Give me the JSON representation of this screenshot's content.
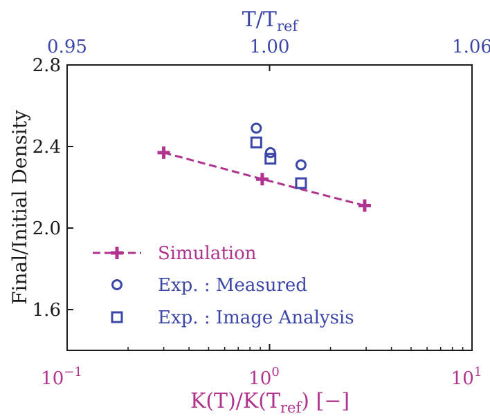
{
  "chart_data": {
    "type": "scatter",
    "x_axis": {
      "label_main": "K(T)/K(T",
      "label_sub": "ref",
      "label_tail": ") [−]",
      "scale": "log",
      "range": [
        0.1,
        10
      ],
      "ticks": [
        {
          "value": 0.1,
          "base": "10",
          "exp": "−1"
        },
        {
          "value": 1,
          "base": "10",
          "exp": "0"
        },
        {
          "value": 10,
          "base": "10",
          "exp": "1"
        }
      ],
      "color": "#b0338f"
    },
    "top_axis": {
      "label_main": "T/T",
      "label_sub": "ref",
      "ticks": [
        {
          "pos": 0.1,
          "text": "0.95"
        },
        {
          "pos": 1,
          "text": "1.00"
        },
        {
          "pos": 10,
          "text": "1.06"
        }
      ],
      "color": "#3b46a8"
    },
    "y_axis": {
      "label": "Final/Initial Density",
      "range": [
        1.4,
        2.8
      ],
      "ticks": [
        {
          "value": 1.6,
          "text": "1.6"
        },
        {
          "value": 2.0,
          "text": "2.0"
        },
        {
          "value": 2.4,
          "text": "2.4"
        },
        {
          "value": 2.8,
          "text": "2.8"
        }
      ]
    },
    "series": [
      {
        "name": "Simulation",
        "marker": "plus",
        "line": "dashed",
        "color": "#b0338f",
        "points": [
          {
            "x": 0.3,
            "y": 2.37
          },
          {
            "x": 0.92,
            "y": 2.24
          },
          {
            "x": 2.95,
            "y": 2.11
          }
        ]
      },
      {
        "name": "Exp. : Measured",
        "marker": "circle",
        "line": "none",
        "color": "#3b46a8",
        "points": [
          {
            "x": 0.86,
            "y": 2.49
          },
          {
            "x": 1.01,
            "y": 2.37
          },
          {
            "x": 1.43,
            "y": 2.31
          }
        ]
      },
      {
        "name": "Exp. : Image Analysis",
        "marker": "square",
        "line": "none",
        "color": "#3b46a8",
        "points": [
          {
            "x": 0.86,
            "y": 2.42
          },
          {
            "x": 1.01,
            "y": 2.34
          },
          {
            "x": 1.43,
            "y": 2.22
          }
        ]
      }
    ],
    "legend": "lower-left",
    "grid": false
  }
}
